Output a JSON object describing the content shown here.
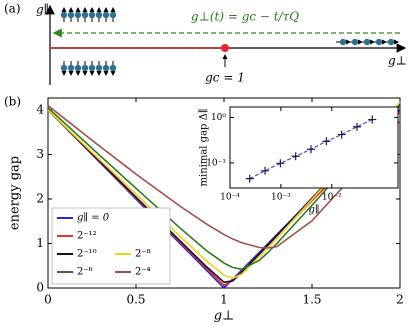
{
  "diagram": {
    "panel_label": "(a)",
    "vertical_axis_label": "g∥",
    "horizontal_axis_label": "g⊥",
    "protocol_label": "g⊥(t) = gc − t/τQ",
    "critical_point_label": "gc = 1"
  },
  "chart_data": [
    {
      "type": "line",
      "panel_label": "(b)",
      "xlabel": "g⊥",
      "ylabel": "energy gap",
      "xlim": [
        0,
        2
      ],
      "ylim": [
        0,
        4.27
      ],
      "xticks": [
        0,
        0.5,
        1,
        1.5,
        2
      ],
      "yticks": [
        0,
        1,
        2,
        3,
        4
      ],
      "legend": "lower left",
      "x": [
        0,
        0.25,
        0.5,
        0.75,
        0.9,
        1,
        1.05,
        1.1,
        1.2,
        1.25,
        1.3,
        1.5,
        1.75,
        2
      ],
      "series": [
        {
          "name": "g∥ = 0",
          "color": "#2626d9",
          "values": [
            4,
            3,
            2,
            1,
            0.4,
            0,
            0.2,
            0.4,
            0.8,
            1,
            1.2,
            2,
            3,
            4
          ]
        },
        {
          "name": "2⁻¹²",
          "color": "#e8342c",
          "values": [
            4.0,
            3.01,
            2.02,
            1.03,
            0.44,
            0.06,
            0.17,
            0.36,
            0.76,
            0.96,
            1.16,
            1.96,
            2.96,
            3.96
          ]
        },
        {
          "name": "2⁻¹⁰",
          "color": "#111133",
          "values": [
            4.0,
            3.02,
            2.04,
            1.06,
            0.48,
            0.13,
            0.16,
            0.35,
            0.76,
            0.97,
            1.18,
            2.02,
            3.07,
            4.12
          ]
        },
        {
          "name": "2⁻⁸",
          "color": "#f0d21a",
          "values": [
            4.0,
            3.05,
            2.11,
            1.16,
            0.61,
            0.29,
            0.22,
            0.31,
            0.7,
            0.91,
            1.12,
            1.99,
            3.09,
            4.18
          ]
        },
        {
          "name": "2⁻⁶",
          "color": "#2a7a1e",
          "values": [
            4.05,
            3.14,
            2.24,
            1.35,
            0.84,
            0.56,
            0.46,
            0.42,
            0.62,
            0.8,
            1.0,
            1.86,
            2.97,
            4.1
          ]
        },
        {
          "name": "2⁻⁴",
          "color": "#a0524a",
          "values": [
            4.1,
            3.32,
            2.56,
            1.84,
            1.44,
            1.2,
            1.1,
            1.02,
            0.91,
            0.9,
            0.93,
            1.51,
            2.59,
            3.75
          ]
        }
      ]
    },
    {
      "type": "line",
      "xlabel": "g∥",
      "ylabel": "minimal gap Δ∥",
      "xscale": "log",
      "yscale": "log",
      "xlim": [
        0.0001,
        0.2
      ],
      "ylim": [
        0.028,
        1.7
      ],
      "xticks": [
        {
          "value": 0.0001,
          "label": "10⁻⁴"
        },
        {
          "value": 0.001,
          "label": "10⁻³"
        },
        {
          "value": 0.01,
          "label": "10⁻²"
        }
      ],
      "yticks": [
        {
          "value": 0.1,
          "label": "10⁻¹"
        },
        {
          "value": 1,
          "label": "10⁰"
        }
      ],
      "marker": "+",
      "linestyle": "dashed",
      "color": "#1a1a55",
      "line_color": "#3a4fb0",
      "x": [
        0.000244140625,
        0.00048828125,
        0.0009765625,
        0.001953125,
        0.00390625,
        0.0078125,
        0.015625,
        0.03125,
        0.0625
      ],
      "values": [
        0.045,
        0.067,
        0.098,
        0.14,
        0.2,
        0.3,
        0.42,
        0.62,
        0.9
      ]
    }
  ]
}
